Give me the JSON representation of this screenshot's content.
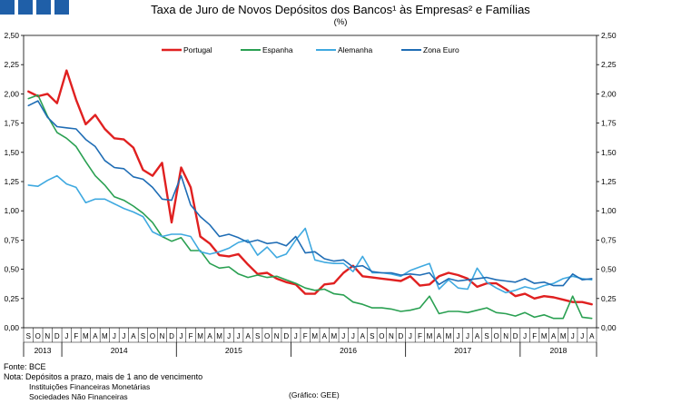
{
  "header": {
    "title": "Taxa de Juro de Novos Depósitos dos Bancos¹ às Empresas² e Famílias",
    "unit": "(%)"
  },
  "footer": {
    "source": "Fonte: BCE",
    "note": "Nota: Depósitos a prazo, mais de 1 ano de vencimento",
    "footnote1": "Instituições Financeiras Monetárias",
    "footnote2": "Sociedades Não Financeiras",
    "credit": "(Gráfico: GEE)"
  },
  "chart_data": {
    "type": "line",
    "title": "Taxa de Juro de Novos Depósitos dos Bancos¹ às Empresas² e Famílias",
    "ylabel": "(%)",
    "ylim": [
      0,
      2.5
    ],
    "yticks": [
      "0,00",
      "0,25",
      "0,50",
      "0,75",
      "1,00",
      "1,25",
      "1,50",
      "1,75",
      "2,00",
      "2,25",
      "2,50"
    ],
    "grid": false,
    "legend_position": "top-center",
    "x": [
      "S",
      "O",
      "N",
      "D",
      "J",
      "F",
      "M",
      "A",
      "M",
      "J",
      "J",
      "A",
      "S",
      "O",
      "N",
      "D",
      "J",
      "F",
      "M",
      "A",
      "M",
      "J",
      "J",
      "A",
      "S",
      "O",
      "N",
      "D",
      "J",
      "F",
      "M",
      "A",
      "M",
      "J",
      "J",
      "A",
      "S",
      "O",
      "N",
      "D",
      "J",
      "F",
      "M",
      "A",
      "M",
      "J",
      "J",
      "A",
      "S",
      "O",
      "N",
      "D",
      "J",
      "F",
      "M",
      "A",
      "M",
      "J",
      "J",
      "A"
    ],
    "years": [
      {
        "label": "2013",
        "start": 0,
        "end": 4
      },
      {
        "label": "2014",
        "start": 4,
        "end": 16
      },
      {
        "label": "2015",
        "start": 16,
        "end": 28
      },
      {
        "label": "2016",
        "start": 28,
        "end": 40
      },
      {
        "label": "2017",
        "start": 40,
        "end": 52
      },
      {
        "label": "2018",
        "start": 52,
        "end": 60
      }
    ],
    "series": [
      {
        "name": "Portugal",
        "color": "#e02020",
        "values": [
          2.02,
          1.98,
          2.0,
          1.92,
          2.2,
          1.95,
          1.74,
          1.82,
          1.7,
          1.62,
          1.61,
          1.54,
          1.35,
          1.3,
          1.41,
          0.9,
          1.37,
          1.2,
          0.78,
          0.72,
          0.62,
          0.61,
          0.63,
          0.54,
          0.46,
          0.47,
          0.42,
          0.39,
          0.37,
          0.29,
          0.29,
          0.37,
          0.38,
          0.47,
          0.53,
          0.44,
          0.43,
          0.42,
          0.41,
          0.4,
          0.44,
          0.36,
          0.37,
          0.44,
          0.47,
          0.45,
          0.42,
          0.35,
          0.38,
          0.38,
          0.33,
          0.27,
          0.29,
          0.25,
          0.27,
          0.26,
          0.24,
          0.22,
          0.22,
          0.2
        ]
      },
      {
        "name": "Espanha",
        "color": "#2aa052",
        "values": [
          1.96,
          1.99,
          1.81,
          1.67,
          1.62,
          1.55,
          1.42,
          1.3,
          1.22,
          1.12,
          1.09,
          1.04,
          0.98,
          0.9,
          0.78,
          0.74,
          0.77,
          0.66,
          0.66,
          0.55,
          0.51,
          0.52,
          0.46,
          0.43,
          0.45,
          0.43,
          0.44,
          0.41,
          0.38,
          0.34,
          0.32,
          0.33,
          0.29,
          0.28,
          0.22,
          0.2,
          0.17,
          0.17,
          0.16,
          0.14,
          0.15,
          0.17,
          0.27,
          0.12,
          0.14,
          0.14,
          0.13,
          0.15,
          0.17,
          0.13,
          0.12,
          0.1,
          0.13,
          0.09,
          0.11,
          0.08,
          0.08,
          0.27,
          0.09,
          0.08
        ]
      },
      {
        "name": "Alemanha",
        "color": "#3fa9e0",
        "values": [
          1.22,
          1.21,
          1.26,
          1.3,
          1.23,
          1.2,
          1.07,
          1.1,
          1.1,
          1.06,
          1.02,
          0.99,
          0.95,
          0.82,
          0.78,
          0.8,
          0.8,
          0.78,
          0.65,
          0.63,
          0.65,
          0.68,
          0.73,
          0.75,
          0.62,
          0.69,
          0.6,
          0.63,
          0.75,
          0.85,
          0.58,
          0.56,
          0.55,
          0.55,
          0.48,
          0.61,
          0.47,
          0.47,
          0.46,
          0.44,
          0.49,
          0.52,
          0.55,
          0.33,
          0.41,
          0.34,
          0.33,
          0.51,
          0.39,
          0.34,
          0.3,
          0.32,
          0.35,
          0.33,
          0.36,
          0.38,
          0.42,
          0.44,
          0.42,
          0.41
        ]
      },
      {
        "name": "Zona Euro",
        "color": "#1f6db5",
        "values": [
          1.9,
          1.94,
          1.8,
          1.72,
          1.71,
          1.7,
          1.61,
          1.55,
          1.43,
          1.37,
          1.36,
          1.29,
          1.27,
          1.2,
          1.1,
          1.09,
          1.3,
          1.05,
          0.95,
          0.88,
          0.78,
          0.8,
          0.77,
          0.73,
          0.75,
          0.72,
          0.73,
          0.7,
          0.78,
          0.64,
          0.65,
          0.59,
          0.57,
          0.58,
          0.52,
          0.53,
          0.48,
          0.47,
          0.47,
          0.45,
          0.46,
          0.45,
          0.47,
          0.37,
          0.42,
          0.4,
          0.41,
          0.42,
          0.43,
          0.41,
          0.4,
          0.39,
          0.42,
          0.38,
          0.39,
          0.36,
          0.36,
          0.46,
          0.41,
          0.42
        ]
      }
    ]
  }
}
